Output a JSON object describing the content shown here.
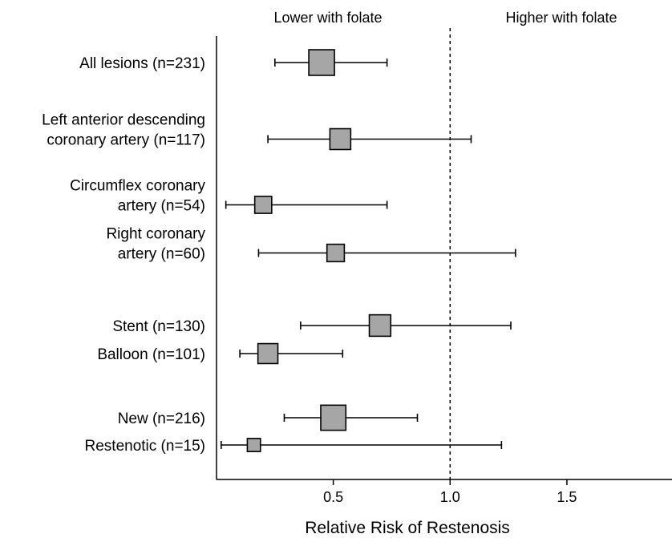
{
  "chart_data": {
    "type": "forest",
    "title": "",
    "xlabel": "Relative Risk of Restenosis",
    "ylabel": "",
    "xlim": [
      0.0,
      1.95
    ],
    "reference_line": 1.0,
    "x_ticks": [
      {
        "value": 0.5,
        "label": "0.5"
      },
      {
        "value": 1.0,
        "label": "1.0"
      },
      {
        "value": 1.5,
        "label": "1.5"
      }
    ],
    "header_left": "Lower with folate",
    "header_right": "Higher with folate",
    "rows": [
      {
        "label_lines": [
          "All lesions (n=231)"
        ],
        "n": 231,
        "estimate": 0.45,
        "lower": 0.25,
        "upper": 0.73
      },
      {
        "label_lines": [
          "Left anterior descending",
          "coronary artery (n=117)"
        ],
        "n": 117,
        "estimate": 0.53,
        "lower": 0.22,
        "upper": 1.09
      },
      {
        "label_lines": [
          "Circumflex coronary",
          "artery (n=54)"
        ],
        "n": 54,
        "estimate": 0.2,
        "lower": 0.04,
        "upper": 0.73
      },
      {
        "label_lines": [
          "Right coronary",
          "artery (n=60)"
        ],
        "n": 60,
        "estimate": 0.51,
        "lower": 0.18,
        "upper": 1.28
      },
      {
        "label_lines": [
          "Stent (n=130)"
        ],
        "n": 130,
        "estimate": 0.7,
        "lower": 0.36,
        "upper": 1.26
      },
      {
        "label_lines": [
          "Balloon (n=101)"
        ],
        "n": 101,
        "estimate": 0.22,
        "lower": 0.1,
        "upper": 0.54
      },
      {
        "label_lines": [
          "New (n=216)"
        ],
        "n": 216,
        "estimate": 0.5,
        "lower": 0.29,
        "upper": 0.86
      },
      {
        "label_lines": [
          "Restenotic (n=15)"
        ],
        "n": 15,
        "estimate": 0.16,
        "lower": 0.02,
        "upper": 1.22
      }
    ]
  }
}
